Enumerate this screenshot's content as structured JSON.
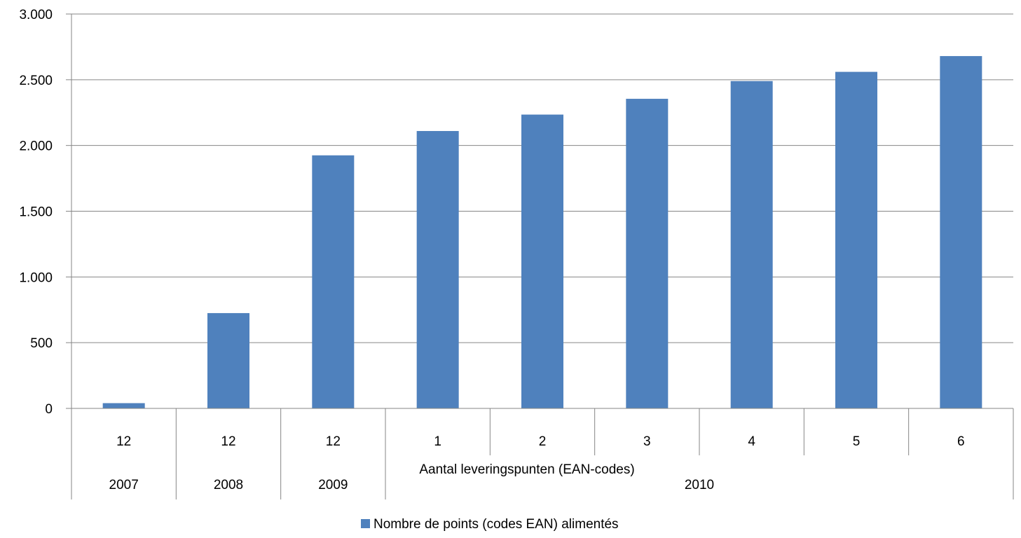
{
  "chart_data": {
    "type": "bar",
    "xlabel": "Aantal leveringspunten (EAN-codes)",
    "ylabel": "",
    "ylim": [
      0,
      3000
    ],
    "yticks": [
      0,
      500,
      1000,
      1500,
      2000,
      2500,
      3000
    ],
    "ytick_labels": [
      "0",
      "500",
      "1.000",
      "1.500",
      "2.000",
      "2.500",
      "3.000"
    ],
    "grid": true,
    "legend_position": "bottom",
    "categories": [
      "12",
      "12",
      "12",
      "1",
      "2",
      "3",
      "4",
      "5",
      "6"
    ],
    "groups": [
      {
        "label": "2007",
        "count": 1
      },
      {
        "label": "2008",
        "count": 1
      },
      {
        "label": "2009",
        "count": 1
      },
      {
        "label": "2010",
        "count": 6
      }
    ],
    "series": [
      {
        "name": "Nombre de points (codes EAN) alimentés",
        "color": "#4F81BD",
        "values": [
          40,
          725,
          1925,
          2110,
          2235,
          2355,
          2490,
          2560,
          2680
        ]
      }
    ]
  }
}
